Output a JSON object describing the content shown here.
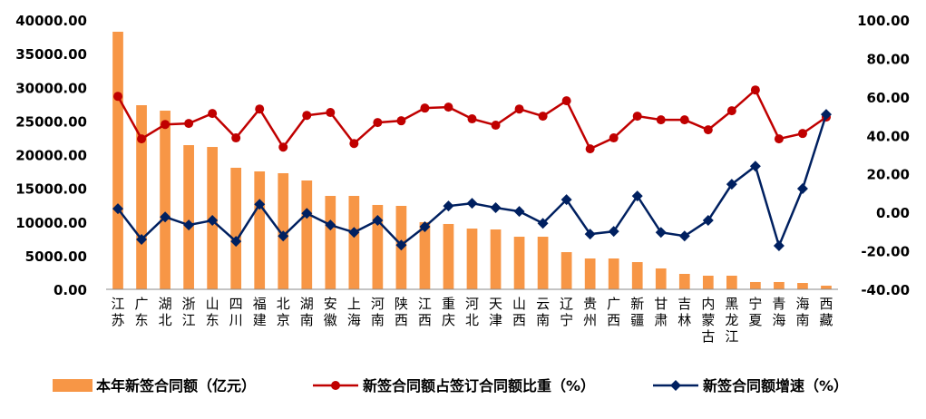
{
  "chart_data": {
    "type": "bar+line",
    "categories": [
      "江苏",
      "广东",
      "湖北",
      "浙江",
      "山东",
      "四川",
      "福建",
      "北京",
      "湖南",
      "安徽",
      "上海",
      "河南",
      "陕西",
      "江西",
      "重庆",
      "河北",
      "天津",
      "山西",
      "云南",
      "辽宁",
      "贵州",
      "广西",
      "新疆",
      "甘肃",
      "吉林",
      "内蒙古",
      "黑龙江",
      "宁夏",
      "青海",
      "海南",
      "西藏"
    ],
    "series": [
      {
        "name": "本年新签合同额（亿元）",
        "type": "bar",
        "axis": "left",
        "color": "#F79646",
        "values": [
          38250,
          27340,
          26530,
          21410,
          21140,
          18050,
          17510,
          17240,
          16160,
          13870,
          13870,
          12530,
          12390,
          9970,
          9700,
          9020,
          8890,
          7810,
          7810,
          5520,
          4580,
          4580,
          4040,
          3100,
          2290,
          2020,
          2020,
          1080,
          1080,
          940,
          540
        ]
      },
      {
        "name": "新签合同额占签订合同额比重（%）",
        "type": "line",
        "axis": "right",
        "color": "#C00000",
        "marker": "circle",
        "values": [
          60.3,
          38.2,
          45.7,
          46.2,
          51.4,
          38.7,
          53.7,
          33.9,
          50.4,
          51.9,
          35.8,
          46.7,
          47.6,
          54.2,
          54.7,
          48.6,
          45.3,
          53.7,
          50.0,
          58.0,
          33.0,
          38.7,
          50.0,
          48.1,
          48.1,
          42.9,
          52.8,
          63.6,
          38.2,
          41.0,
          49.5
        ]
      },
      {
        "name": "新签合同额增速（%）",
        "type": "line",
        "axis": "right",
        "color": "#002060",
        "marker": "diamond",
        "values": [
          1.9,
          -14.1,
          -2.4,
          -6.6,
          -4.2,
          -15.1,
          4.2,
          -12.3,
          -0.5,
          -6.6,
          -10.4,
          -4.2,
          -17.0,
          -7.5,
          3.3,
          4.7,
          2.4,
          0.5,
          -5.7,
          6.6,
          -11.3,
          -9.9,
          8.5,
          -10.4,
          -12.3,
          -4.2,
          14.6,
          24.0,
          -17.4,
          12.3,
          50.9
        ]
      }
    ],
    "left_axis": {
      "ylim": [
        0,
        40000
      ],
      "ticks": [
        "0.00",
        "5000.00",
        "10000.00",
        "15000.00",
        "20000.00",
        "25000.00",
        "30000.00",
        "35000.00",
        "40000.00"
      ]
    },
    "right_axis": {
      "ylim": [
        -40,
        100
      ],
      "ticks": [
        "-40.00",
        "-20.00",
        "0.00",
        "20.00",
        "40.00",
        "60.00",
        "80.00",
        "100.00"
      ]
    },
    "grid": false,
    "legend": "bottom"
  }
}
